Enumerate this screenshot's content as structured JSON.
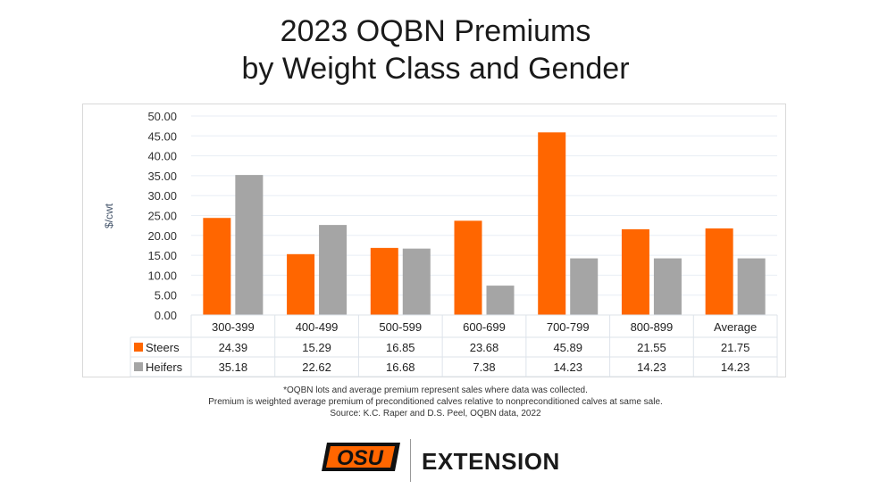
{
  "title_lines": [
    "2023 OQBN Premiums",
    "by Weight Class and Gender"
  ],
  "chart_data": {
    "type": "bar",
    "title": "2023 OQBN Premiums by Weight Class and Gender",
    "xlabel": "",
    "ylabel": "$/cwt",
    "ylim": [
      0,
      50
    ],
    "yticks": [
      "0.00",
      "5.00",
      "10.00",
      "15.00",
      "20.00",
      "25.00",
      "30.00",
      "35.00",
      "40.00",
      "45.00",
      "50.00"
    ],
    "ytick_values": [
      0,
      5,
      10,
      15,
      20,
      25,
      30,
      35,
      40,
      45,
      50
    ],
    "grid": true,
    "categories": [
      "300-399",
      "400-499",
      "500-599",
      "600-699",
      "700-799",
      "800-899",
      "Average"
    ],
    "series": [
      {
        "name": "Steers",
        "color": "#ff6600",
        "values": [
          24.39,
          15.29,
          16.85,
          23.68,
          45.89,
          21.55,
          21.75
        ],
        "labels": [
          "24.39",
          "15.29",
          "16.85",
          "23.68",
          "45.89",
          "21.55",
          "21.75"
        ]
      },
      {
        "name": "Heifers",
        "color": "#a5a5a5",
        "values": [
          35.18,
          22.62,
          16.68,
          7.38,
          14.23,
          14.23,
          14.23
        ],
        "labels": [
          "35.18",
          "22.62",
          "16.68",
          "7.38",
          "14.23",
          "14.23",
          "14.23"
        ]
      }
    ],
    "legend": "data-table"
  },
  "notes": [
    "*OQBN lots and average premium represent sales where data was collected.",
    "Premium is weighted average premium of preconditioned calves relative to nonpreconditioned calves at same sale.",
    "Source: K.C. Raper and D.S. Peel, OQBN data, 2022"
  ],
  "logo": {
    "mark_text": "OSU",
    "extension_label": "EXTENSION",
    "brand_color": "#ff6600"
  }
}
